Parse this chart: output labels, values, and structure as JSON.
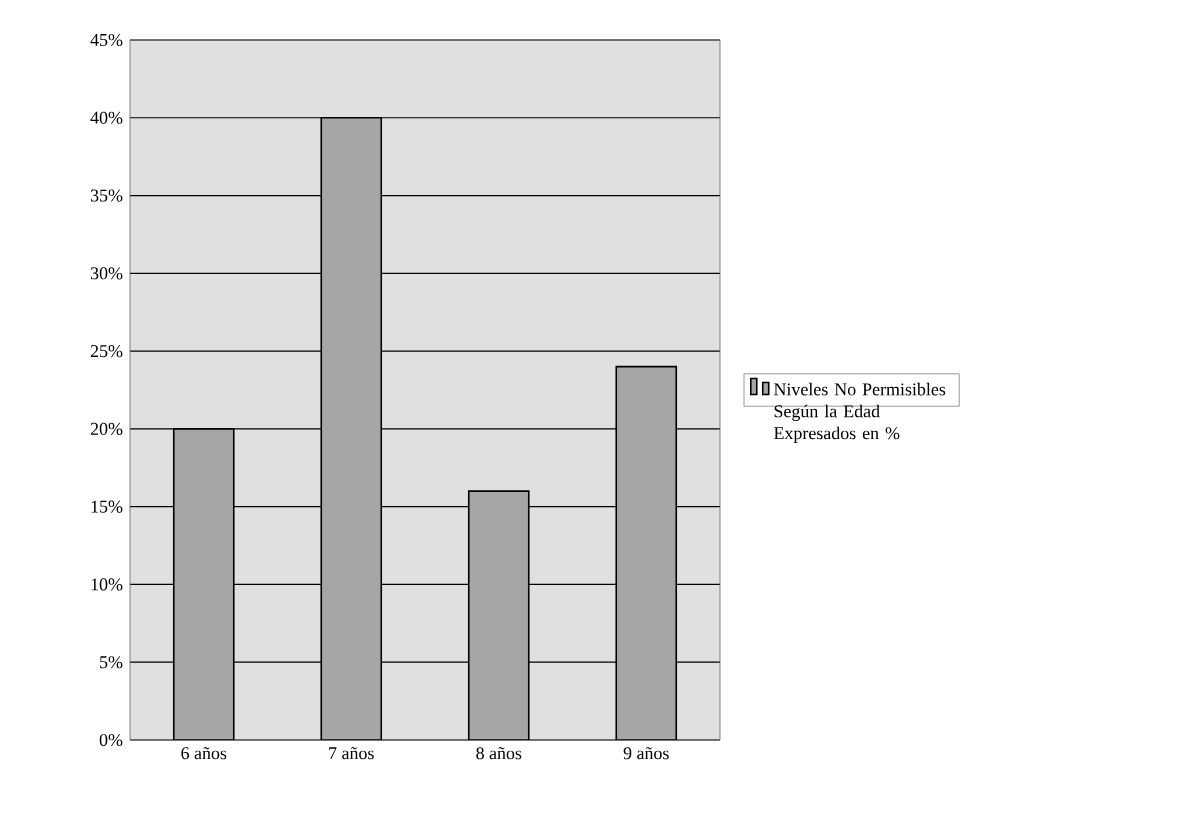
{
  "chart_data": {
    "type": "bar",
    "categories": [
      "6 años",
      "7 años",
      "8 años",
      "9 años"
    ],
    "series": [
      {
        "name": "Niveles No Permisibles Según la Edad Expresados en %",
        "color": "#a6a6a6",
        "values": [
          20,
          40,
          16,
          24
        ]
      }
    ],
    "ylim": [
      0,
      45
    ],
    "yticks": [
      {
        "value": 0,
        "label": "0%"
      },
      {
        "value": 5,
        "label": "5%"
      },
      {
        "value": 10,
        "label": "10%"
      },
      {
        "value": 15,
        "label": "15%"
      },
      {
        "value": 20,
        "label": "20%"
      },
      {
        "value": 25,
        "label": "25%"
      },
      {
        "value": 30,
        "label": "30%"
      },
      {
        "value": 35,
        "label": "35%"
      },
      {
        "value": 40,
        "label": "40%"
      },
      {
        "value": 45,
        "label": "45%"
      }
    ],
    "grid": "y",
    "legend": "right"
  }
}
